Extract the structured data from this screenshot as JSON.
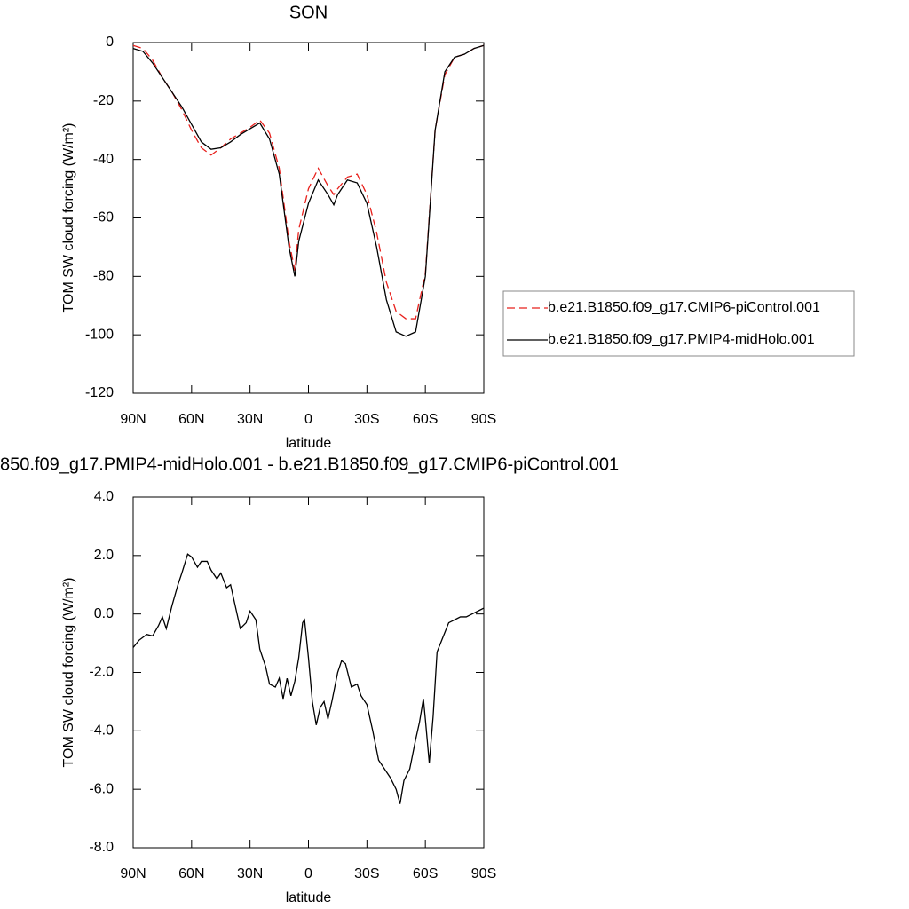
{
  "chart_data": [
    {
      "type": "line",
      "title": "SON",
      "xlabel": "latitude",
      "ylabel": "TOM SW cloud forcing (W/m²)",
      "xlim": [
        90,
        -90
      ],
      "ylim": [
        -120,
        0
      ],
      "xticks": [
        {
          "value": 90,
          "label": "90N"
        },
        {
          "value": 60,
          "label": "60N"
        },
        {
          "value": 30,
          "label": "30N"
        },
        0,
        {
          "value": -30,
          "label": "30S"
        },
        {
          "value": -60,
          "label": "60S"
        },
        {
          "value": -90,
          "label": "90S"
        }
      ],
      "yticks": [
        0,
        -20,
        -40,
        -60,
        -80,
        -100,
        -120
      ],
      "legend": "right",
      "x": [
        90,
        85,
        80,
        75,
        70,
        65,
        60,
        55,
        50,
        45,
        40,
        35,
        30,
        25,
        20,
        15,
        10,
        7,
        5,
        0,
        -5,
        -10,
        -13,
        -15,
        -20,
        -25,
        -30,
        -35,
        -40,
        -45,
        -50,
        -55,
        -60,
        -65,
        -70,
        -75,
        -80,
        -85,
        -90
      ],
      "series": [
        {
          "name": "b.e21.B1850.f09_g17.CMIP6-piControl.001",
          "color": "#e8201c",
          "line_style": "dashed",
          "values": [
            -1,
            -2,
            -6,
            -12,
            -17,
            -23,
            -30,
            -36,
            -38.5,
            -36,
            -33,
            -31,
            -29,
            -26.5,
            -31,
            -43,
            -68,
            -78,
            -64,
            -50,
            -43,
            -49,
            -52,
            -50,
            -46,
            -45,
            -52,
            -65,
            -82,
            -92,
            -94.5,
            -94.5,
            -79,
            -30,
            -11,
            -5,
            -4,
            -2,
            -1
          ]
        },
        {
          "name": "b.e21.B1850.f09_g17.PMIP4-midHolo.001",
          "color": "#000000",
          "line_style": "solid",
          "values": [
            -2,
            -3,
            -7,
            -12,
            -17,
            -22,
            -28,
            -34,
            -36.5,
            -36,
            -34,
            -31.5,
            -29.5,
            -27.5,
            -33,
            -45,
            -70,
            -80,
            -68,
            -55,
            -47,
            -52,
            -55.5,
            -52,
            -47,
            -48,
            -55,
            -70,
            -88,
            -99,
            -100.5,
            -99,
            -80,
            -30,
            -10,
            -5,
            -4,
            -2,
            -1
          ]
        }
      ]
    },
    {
      "type": "line",
      "title": "850.f09_g17.PMIP4-midHolo.001 - b.e21.B1850.f09_g17.CMIP6-piControl.001",
      "xlabel": "latitude",
      "ylabel": "TOM SW cloud forcing (W/m²)",
      "xlim": [
        90,
        -90
      ],
      "ylim": [
        -8,
        4
      ],
      "xticks": [
        {
          "value": 90,
          "label": "90N"
        },
        {
          "value": 60,
          "label": "60N"
        },
        {
          "value": 30,
          "label": "30N"
        },
        0,
        {
          "value": -30,
          "label": "30S"
        },
        {
          "value": -60,
          "label": "60S"
        },
        {
          "value": -90,
          "label": "90S"
        }
      ],
      "yticks": [
        {
          "value": 4,
          "label": "4.0"
        },
        {
          "value": 2,
          "label": "2.0"
        },
        {
          "value": 0,
          "label": "0.0"
        },
        {
          "value": -2,
          "label": "-2.0"
        },
        {
          "value": -4,
          "label": "-4.0"
        },
        {
          "value": -6,
          "label": "-6.0"
        },
        {
          "value": -8,
          "label": "-8.0"
        }
      ],
      "x": [
        90,
        87,
        83,
        80,
        77,
        75,
        73,
        70,
        67,
        65,
        62,
        60,
        57,
        55,
        52,
        50,
        47,
        45,
        42,
        40,
        37,
        35,
        32,
        30,
        27,
        25,
        22,
        20,
        17,
        15,
        13,
        11,
        9,
        7,
        5,
        3,
        2,
        0,
        -2,
        -4,
        -6,
        -8,
        -10,
        -12,
        -15,
        -17,
        -19,
        -22,
        -25,
        -27,
        -30,
        -33,
        -36,
        -39,
        -42,
        -45,
        -47,
        -49,
        -52,
        -55,
        -57,
        -59,
        -60,
        -62,
        -64,
        -66,
        -69,
        -72,
        -75,
        -78,
        -81,
        -84,
        -87,
        -90
      ],
      "series": [
        {
          "color": "#000000",
          "line_style": "solid",
          "values": [
            -1.15,
            -0.9,
            -0.7,
            -0.75,
            -0.4,
            -0.1,
            -0.5,
            0.3,
            1.0,
            1.4,
            2.05,
            1.95,
            1.6,
            1.8,
            1.8,
            1.5,
            1.2,
            1.4,
            0.9,
            1.0,
            0.1,
            -0.5,
            -0.3,
            0.1,
            -0.2,
            -1.2,
            -1.8,
            -2.4,
            -2.5,
            -2.2,
            -2.9,
            -2.2,
            -2.8,
            -2.3,
            -1.5,
            -0.3,
            -0.2,
            -1.5,
            -3.0,
            -3.8,
            -3.2,
            -3.0,
            -3.6,
            -3.0,
            -2.0,
            -1.6,
            -1.7,
            -2.5,
            -2.4,
            -2.8,
            -3.1,
            -4.0,
            -5.0,
            -5.3,
            -5.6,
            -6.0,
            -6.5,
            -5.7,
            -5.3,
            -4.3,
            -3.7,
            -2.9,
            -3.6,
            -5.1,
            -3.5,
            -1.3,
            -0.8,
            -0.3,
            -0.2,
            -0.1,
            -0.1,
            0,
            0.1,
            0.2
          ]
        }
      ]
    }
  ]
}
